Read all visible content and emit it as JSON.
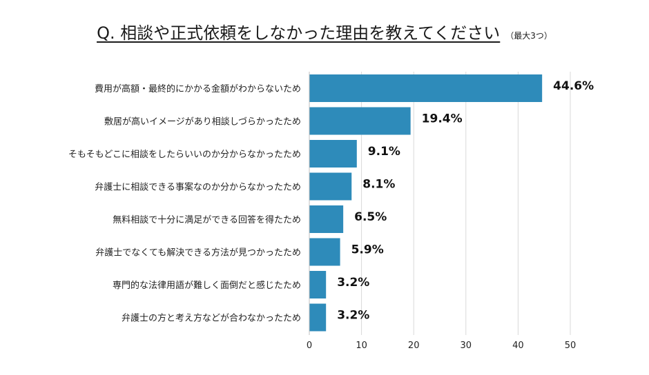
{
  "chart_data": {
    "type": "bar",
    "orientation": "horizontal",
    "title": "Q. 相談や正式依頼をしなかった理由を教えてください",
    "subtitle": "（最大3つ）",
    "categories": [
      "費用が高額・最終的にかかる金額がわからないため",
      "敷居が高いイメージがあり相談しづらかったため",
      "そもそもどこに相談をしたらいいのか分からなかったため",
      "弁護士に相談できる事案なのか分からなかったため",
      "無料相談で十分に満足ができる回答を得たため",
      "弁護士でなくても解決できる方法が見つかったため",
      "専門的な法律用語が難しく面倒だと感じたため",
      "弁護士の方と考え方などが合わなかったため"
    ],
    "values": [
      44.6,
      19.4,
      9.1,
      8.1,
      6.5,
      5.9,
      3.2,
      3.2
    ],
    "value_labels": [
      "44.6%",
      "19.4%",
      "9.1%",
      "8.1%",
      "6.5%",
      "5.9%",
      "3.2%",
      "3.2%"
    ],
    "xlim": [
      0,
      50
    ],
    "xticks": [
      0,
      10,
      20,
      30,
      40,
      50
    ],
    "grid": true,
    "bar_color": "#2e8bba"
  }
}
